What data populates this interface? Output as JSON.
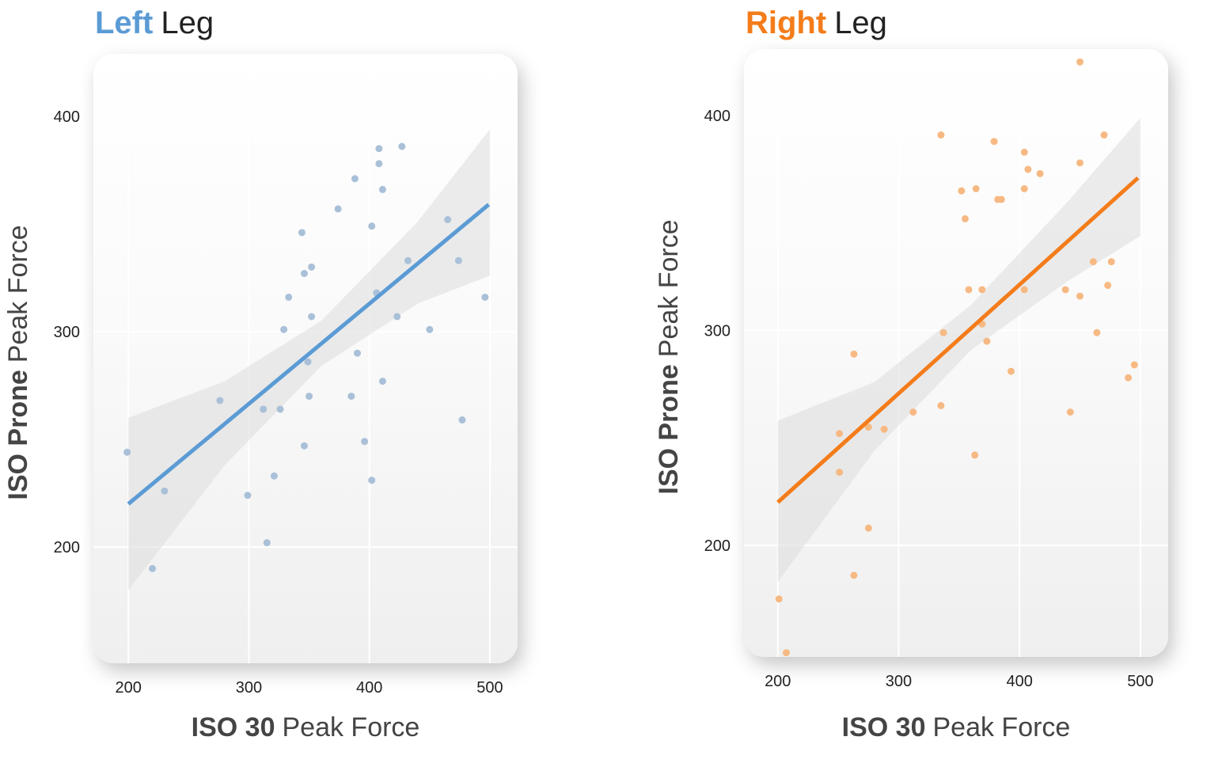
{
  "chart_data": [
    {
      "type": "scatter",
      "title": [
        "Left",
        "Leg"
      ],
      "xlabel": [
        "ISO 30",
        "Peak Force"
      ],
      "ylabel": [
        "ISO Prone",
        "Peak Force"
      ],
      "color": "#5b9bd5",
      "point_color": "#a9c0d8",
      "xlim": [
        171,
        523
      ],
      "ylim": [
        146,
        429
      ],
      "xticks": [
        200,
        300,
        400,
        500
      ],
      "yticks": [
        200,
        300,
        400
      ],
      "grid": true,
      "x": [
        199,
        220,
        230,
        276,
        299,
        312,
        315,
        321,
        326,
        329,
        333,
        344,
        346,
        346,
        349,
        350,
        352,
        352,
        374,
        385,
        388,
        390,
        396,
        402,
        402,
        406,
        408,
        408,
        411,
        411,
        423,
        427,
        432,
        450,
        465,
        474,
        477,
        496
      ],
      "values": [
        244,
        190,
        226,
        268,
        224,
        264,
        202,
        233,
        264,
        301,
        316,
        346,
        327,
        247,
        286,
        270,
        330,
        307,
        357,
        270,
        371,
        290,
        249,
        349,
        231,
        318,
        385,
        378,
        366,
        277,
        307,
        386,
        333,
        301,
        352,
        333,
        259,
        316
      ],
      "fit": {
        "x": [
          200,
          499
        ],
        "y": [
          220,
          359
        ]
      },
      "band": {
        "x": [
          200,
          280,
          360,
          440,
          500
        ],
        "upper": [
          260,
          277,
          305,
          351,
          394
        ],
        "lower": [
          180,
          238,
          284,
          313,
          326
        ]
      }
    },
    {
      "type": "scatter",
      "title": [
        "Right",
        "Leg"
      ],
      "xlabel": [
        "ISO 30",
        "Peak Force"
      ],
      "ylabel": [
        "ISO Prone",
        "Peak Force"
      ],
      "color": "#f47c1a",
      "point_color": "#f7b983",
      "xlim": [
        172,
        523
      ],
      "ylim": [
        148,
        431
      ],
      "xticks": [
        200,
        300,
        400,
        500
      ],
      "yticks": [
        200,
        300,
        400
      ],
      "grid": true,
      "x": [
        201,
        207,
        251,
        251,
        263,
        263,
        275,
        275,
        288,
        312,
        335,
        335,
        337,
        352,
        355,
        358,
        363,
        364,
        369,
        369,
        373,
        379,
        382,
        385,
        393,
        404,
        404,
        404,
        407,
        417,
        438,
        442,
        450,
        450,
        450,
        461,
        464,
        470,
        473,
        476,
        490,
        495
      ],
      "values": [
        175,
        150,
        252,
        234,
        289,
        186,
        255,
        208,
        254,
        262,
        391,
        265,
        299,
        365,
        352,
        319,
        242,
        366,
        319,
        303,
        295,
        388,
        361,
        361,
        281,
        383,
        366,
        319,
        375,
        373,
        319,
        262,
        425,
        378,
        316,
        332,
        299,
        391,
        321,
        332,
        278,
        284
      ],
      "fit": {
        "x": [
          200,
          498
        ],
        "y": [
          220,
          371
        ]
      },
      "band": {
        "x": [
          200,
          280,
          360,
          440,
          500
        ],
        "upper": [
          258,
          276,
          312,
          360,
          399
        ],
        "lower": [
          183,
          244,
          291,
          323,
          344
        ]
      }
    }
  ]
}
